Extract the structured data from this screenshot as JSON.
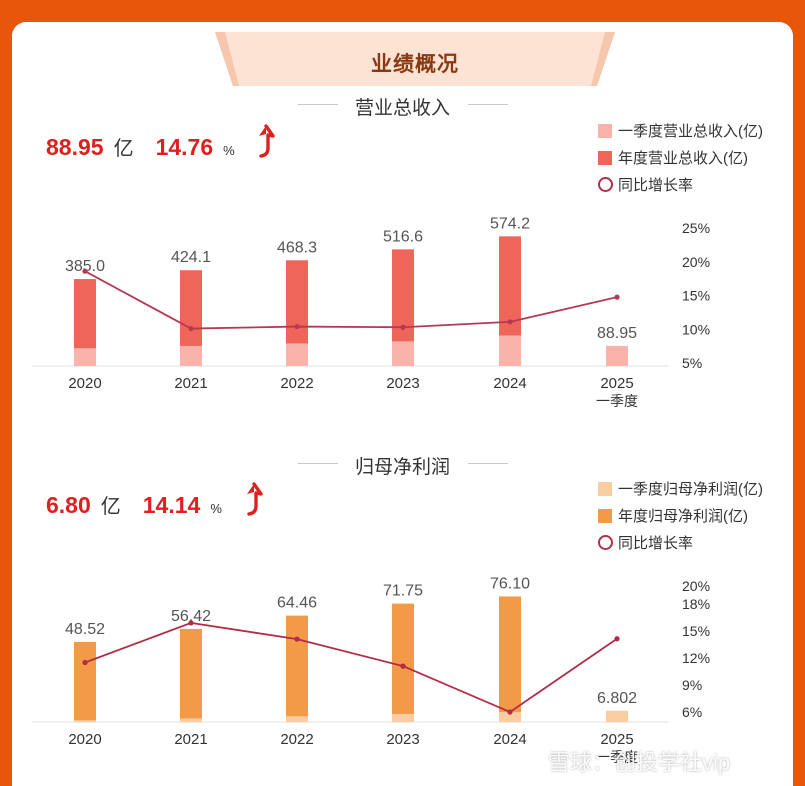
{
  "header": {
    "title": "业绩概况"
  },
  "revenue": {
    "title": "营业总收入",
    "headline": {
      "value": "88.95",
      "value_unit": "亿",
      "growth": "14.76",
      "growth_unit": "%"
    },
    "legend": [
      "一季度营业总收入(亿)",
      "年度营业总收入(亿)",
      "同比增长率"
    ]
  },
  "profit": {
    "title": "归母净利润",
    "headline": {
      "value": "6.80",
      "value_unit": "亿",
      "growth": "14.14",
      "growth_unit": "%"
    },
    "legend": [
      "一季度归母净利润(亿)",
      "年度归母净利润(亿)",
      "同比增长率"
    ]
  },
  "watermark": "雪球：创投学社vip",
  "chart_data": [
    {
      "type": "bar",
      "title": "营业总收入",
      "categories": [
        "2020",
        "2021",
        "2022",
        "2023",
        "2024",
        "2025"
      ],
      "category_sublabels": [
        "",
        "",
        "",
        "",
        "",
        "一季度"
      ],
      "series": [
        {
          "name": "一季度营业总收入(亿)",
          "values": [
            79,
            89,
            100,
            109,
            135,
            88.95
          ],
          "color": "#f9b3aa"
        },
        {
          "name": "年度营业总收入(亿)",
          "values": [
            385.0,
            424.1,
            468.3,
            516.6,
            574.2,
            null
          ],
          "color": "#f0655a"
        },
        {
          "name": "同比增长率",
          "type": "line",
          "axis": "right",
          "values": [
            18.6,
            10.1,
            10.4,
            10.3,
            11.1,
            14.76
          ],
          "color": "#b33a55"
        }
      ],
      "data_labels": [
        "385.0",
        "424.1",
        "468.3",
        "516.6",
        "574.2",
        "88.95"
      ],
      "right_axis": {
        "ticks": [
          "5%",
          "10%",
          "15%",
          "20%",
          "25%"
        ],
        "range": [
          5,
          25
        ]
      },
      "left_axis_max": 620
    },
    {
      "type": "bar",
      "title": "归母净利润",
      "categories": [
        "2020",
        "2021",
        "2022",
        "2023",
        "2024",
        "2025"
      ],
      "category_sublabels": [
        "",
        "",
        "",
        "",
        "",
        "一季度"
      ],
      "series": [
        {
          "name": "一季度归母净利润(亿)",
          "values": [
            1.1,
            2.2,
            3.5,
            4.9,
            6.0,
            6.802
          ],
          "color": "#f9cda1"
        },
        {
          "name": "年度归母净利润(亿)",
          "values": [
            48.52,
            56.42,
            64.46,
            71.75,
            76.1,
            null
          ],
          "color": "#f29a48"
        },
        {
          "name": "同比增长率",
          "type": "line",
          "axis": "right",
          "values": [
            11.5,
            15.9,
            14.1,
            11.1,
            6.0,
            14.14
          ],
          "color": "#b02c47"
        }
      ],
      "data_labels": [
        "48.52",
        "56.42",
        "64.46",
        "71.75",
        "76.10",
        "6.802"
      ],
      "right_axis": {
        "ticks": [
          "6%",
          "9%",
          "12%",
          "15%",
          "18%",
          "20%"
        ],
        "range": [
          6,
          20
        ]
      },
      "left_axis_max": 80
    }
  ]
}
